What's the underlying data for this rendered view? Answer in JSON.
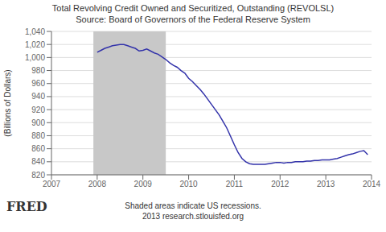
{
  "chart_data": {
    "type": "line",
    "title": "Total Revolving Credit Owned and Securitized, Outstanding (REVOLSL)",
    "subtitle": "Source: Board of Governors of the Federal Reserve System",
    "ylabel": "(Billions of Dollars)",
    "annotations": [
      "Shaded areas indicate US recessions.",
      "2013 research.stlouisfed.org",
      "FRED"
    ],
    "recession": {
      "start": 2007.917,
      "end": 2009.5,
      "color": "#c8c8c8"
    },
    "color": "#3333aa",
    "grid": "y",
    "xlim": [
      2007,
      2014
    ],
    "xticks": [
      2007,
      2008,
      2009,
      2010,
      2011,
      2012,
      2013,
      2014
    ],
    "ylim": [
      820,
      1040
    ],
    "yticks": [
      820,
      840,
      860,
      880,
      900,
      920,
      940,
      960,
      980,
      {
        "value": 1000,
        "label": "1,000"
      },
      {
        "value": 1020,
        "label": "1,020"
      },
      {
        "value": 1040,
        "label": "1,040"
      }
    ],
    "x": [
      2008.0,
      2008.083,
      2008.167,
      2008.25,
      2008.333,
      2008.417,
      2008.5,
      2008.583,
      2008.667,
      2008.75,
      2008.833,
      2008.917,
      2009.0,
      2009.083,
      2009.167,
      2009.25,
      2009.333,
      2009.417,
      2009.5,
      2009.583,
      2009.667,
      2009.75,
      2009.833,
      2009.917,
      2010.0,
      2010.083,
      2010.167,
      2010.25,
      2010.333,
      2010.417,
      2010.5,
      2010.583,
      2010.667,
      2010.75,
      2010.833,
      2010.917,
      2011.0,
      2011.083,
      2011.167,
      2011.25,
      2011.333,
      2011.417,
      2011.5,
      2011.583,
      2011.667,
      2011.75,
      2011.833,
      2011.917,
      2012.0,
      2012.083,
      2012.167,
      2012.25,
      2012.333,
      2012.417,
      2012.5,
      2012.583,
      2012.667,
      2012.75,
      2012.833,
      2012.917,
      2013.0,
      2013.083,
      2013.167,
      2013.25,
      2013.333,
      2013.417,
      2013.5,
      2013.583,
      2013.667,
      2013.75,
      2013.833,
      2013.917
    ],
    "values": [
      1008,
      1011,
      1014,
      1016,
      1018,
      1019,
      1020,
      1020,
      1018,
      1016,
      1014,
      1010,
      1011,
      1013,
      1010,
      1007,
      1005,
      1001,
      997,
      992,
      988,
      985,
      980,
      976,
      968,
      963,
      957,
      951,
      944,
      936,
      928,
      920,
      912,
      902,
      892,
      879,
      866,
      854,
      845,
      840,
      837,
      836,
      836,
      836,
      836,
      837,
      838,
      839,
      839,
      838,
      839,
      839,
      840,
      840,
      840,
      841,
      841,
      842,
      842,
      843,
      843,
      843,
      844,
      845,
      847,
      849,
      851,
      852,
      854,
      856,
      857,
      851
    ]
  }
}
